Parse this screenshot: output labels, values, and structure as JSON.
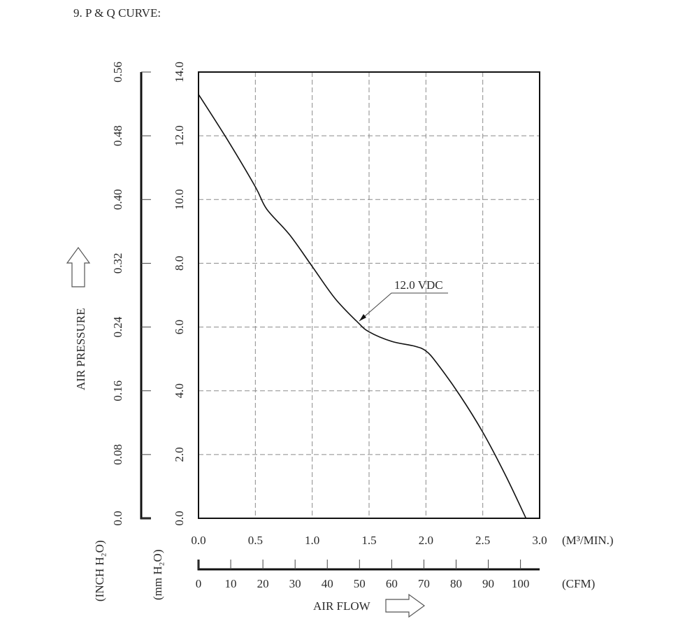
{
  "heading": "9. P & Q CURVE:",
  "chart_data": {
    "type": "line",
    "title": "P & Q CURVE",
    "x_m3min_ticks": [
      "0.0",
      "0.5",
      "1.0",
      "1.5",
      "2.0",
      "2.5",
      "3.0"
    ],
    "x_cfm_ticks": [
      "0",
      "10",
      "20",
      "30",
      "40",
      "50",
      "60",
      "70",
      "80",
      "90",
      "100"
    ],
    "y_mmh2o_ticks": [
      "0.0",
      "2.0",
      "4.0",
      "6.0",
      "8.0",
      "10.0",
      "12.0",
      "14.0"
    ],
    "y_inchh2o_ticks": [
      "0.0",
      "0.08",
      "0.16",
      "0.24",
      "0.32",
      "0.40",
      "0.48",
      "0.56"
    ],
    "xlim": [
      0,
      3.0
    ],
    "ylim": [
      0,
      14.0
    ],
    "grid": true,
    "x_unit_label": "(M³/MIN.)",
    "x_cfm_label": "(CFM)",
    "xlabel": "AIR FLOW",
    "ylabel": "AIR PRESSURE",
    "y_unit_mm": "(mm H₂O)",
    "y_unit_inch": "(INCH H₂O)",
    "series": [
      {
        "name": "12.0 VDC",
        "x": [
          0.0,
          0.25,
          0.5,
          0.6,
          0.8,
          1.0,
          1.2,
          1.4,
          1.5,
          1.7,
          1.9,
          2.0,
          2.1,
          2.3,
          2.5,
          2.7,
          2.88
        ],
        "y": [
          13.3,
          11.9,
          10.4,
          9.7,
          8.9,
          7.9,
          6.9,
          6.15,
          5.85,
          5.55,
          5.4,
          5.25,
          4.85,
          3.85,
          2.7,
          1.35,
          0.0
        ]
      }
    ],
    "annotation": "12.0 VDC"
  }
}
